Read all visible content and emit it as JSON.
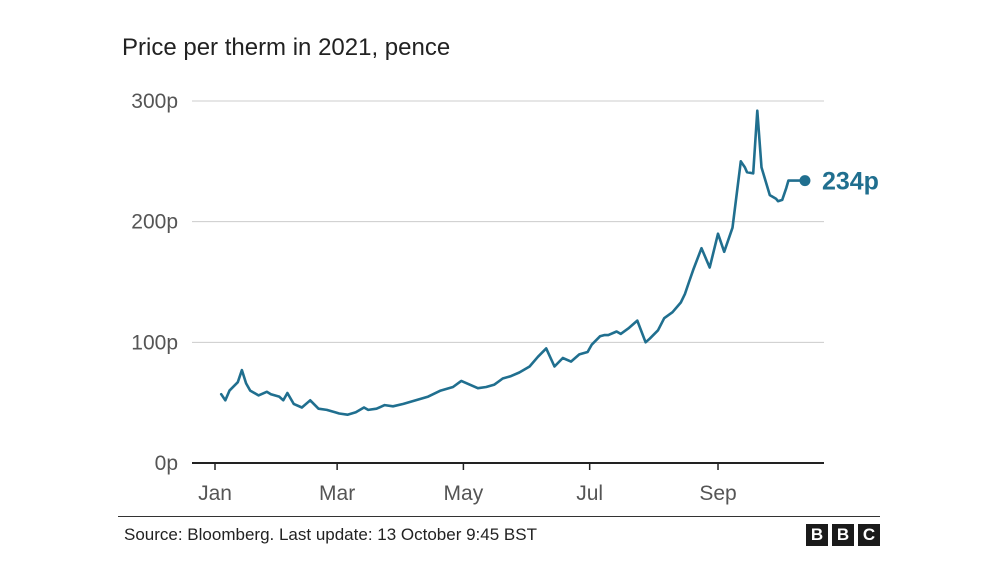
{
  "chart_data": {
    "type": "line",
    "title": "Price per therm in 2021, pence",
    "xlabel": "",
    "ylabel": "",
    "ylim": [
      0,
      300
    ],
    "y_ticks": [
      {
        "value": 0,
        "label": "0p"
      },
      {
        "value": 100,
        "label": "100p"
      },
      {
        "value": 200,
        "label": "200p"
      },
      {
        "value": 300,
        "label": "300p"
      }
    ],
    "x_range": [
      "2021-01-01",
      "2021-10-13"
    ],
    "x_ticks": [
      {
        "date": "2021-01-01",
        "label": "Jan"
      },
      {
        "date": "2021-03-01",
        "label": "Mar"
      },
      {
        "date": "2021-05-01",
        "label": "May"
      },
      {
        "date": "2021-07-01",
        "label": "Jul"
      },
      {
        "date": "2021-09-01",
        "label": "Sep"
      }
    ],
    "grid": true,
    "series": [
      {
        "color": "#206f8f",
        "x": [
          "2021-01-04",
          "2021-01-06",
          "2021-01-08",
          "2021-01-12",
          "2021-01-14",
          "2021-01-16",
          "2021-01-18",
          "2021-01-22",
          "2021-01-26",
          "2021-01-28",
          "2021-02-01",
          "2021-02-03",
          "2021-02-05",
          "2021-02-08",
          "2021-02-12",
          "2021-02-16",
          "2021-02-20",
          "2021-02-24",
          "2021-02-28",
          "2021-03-02",
          "2021-03-06",
          "2021-03-10",
          "2021-03-14",
          "2021-03-16",
          "2021-03-20",
          "2021-03-24",
          "2021-03-28",
          "2021-04-02",
          "2021-04-08",
          "2021-04-14",
          "2021-04-20",
          "2021-04-26",
          "2021-04-30",
          "2021-05-04",
          "2021-05-08",
          "2021-05-12",
          "2021-05-16",
          "2021-05-20",
          "2021-05-24",
          "2021-05-28",
          "2021-06-02",
          "2021-06-06",
          "2021-06-10",
          "2021-06-14",
          "2021-06-18",
          "2021-06-22",
          "2021-06-26",
          "2021-06-30",
          "2021-07-02",
          "2021-07-06",
          "2021-07-08",
          "2021-07-10",
          "2021-07-14",
          "2021-07-16",
          "2021-07-20",
          "2021-07-24",
          "2021-07-28",
          "2021-07-30",
          "2021-08-03",
          "2021-08-06",
          "2021-08-10",
          "2021-08-14",
          "2021-08-16",
          "2021-08-18",
          "2021-08-20",
          "2021-08-24",
          "2021-08-28",
          "2021-09-01",
          "2021-09-04",
          "2021-09-08",
          "2021-09-12",
          "2021-09-14",
          "2021-09-15",
          "2021-09-18",
          "2021-09-20",
          "2021-09-22",
          "2021-09-26",
          "2021-09-28",
          "2021-09-29",
          "2021-09-30",
          "2021-10-02",
          "2021-10-04",
          "2021-10-05",
          "2021-10-06",
          "2021-10-09",
          "2021-10-11",
          "2021-10-12",
          "2021-10-13"
        ],
        "values": [
          57,
          52,
          60,
          67,
          77,
          66,
          60,
          56,
          59,
          57,
          55,
          52,
          58,
          49,
          46,
          52,
          45,
          44,
          42,
          41,
          40,
          42,
          46,
          44,
          45,
          48,
          47,
          49,
          52,
          55,
          60,
          63,
          68,
          65,
          62,
          63,
          65,
          70,
          72,
          75,
          80,
          88,
          95,
          80,
          87,
          84,
          90,
          92,
          98,
          105,
          106,
          106,
          109,
          107,
          112,
          118,
          100,
          103,
          110,
          120,
          125,
          133,
          140,
          150,
          160,
          178,
          162,
          190,
          175,
          195,
          250,
          245,
          241,
          240,
          292,
          245,
          222,
          220,
          219,
          217,
          218,
          228,
          234,
          234,
          234,
          234,
          234,
          234
        ]
      }
    ],
    "annotations": [
      {
        "date": "2021-10-13",
        "value": 234,
        "label": "234p"
      }
    ]
  },
  "footer": {
    "source": "Source: Bloomberg. Last update: 13 October 9:45 BST",
    "logo_letters": [
      "B",
      "B",
      "C"
    ]
  }
}
